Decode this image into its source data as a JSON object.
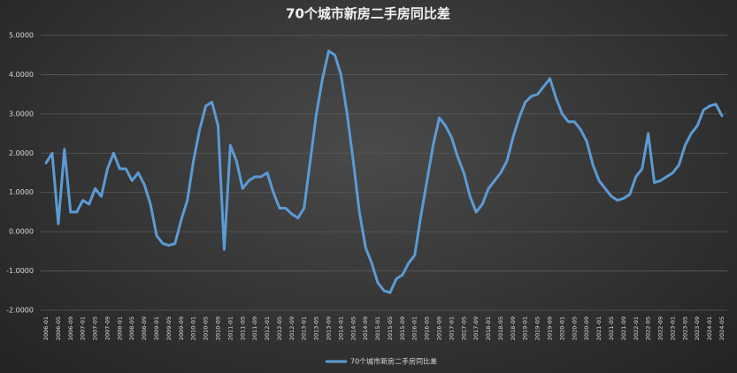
{
  "chart_data": {
    "type": "line",
    "title": "70个城市新房二手房同比差",
    "categories": [
      "2006-01",
      null,
      "2006-05",
      null,
      "2006-09",
      null,
      "2007-01",
      null,
      "2007-05",
      null,
      "2007-09",
      null,
      "2008-01",
      null,
      "2008-05",
      null,
      "2008-09",
      null,
      "2009-01",
      null,
      "2009-05",
      null,
      "2009-09",
      null,
      "2010-01",
      null,
      "2010-05",
      null,
      "2010-09",
      null,
      "2011-01",
      null,
      "2011-05",
      null,
      "2011-09",
      null,
      "2012-01",
      null,
      "2012-05",
      null,
      "2012-09",
      null,
      "2013-01",
      null,
      "2013-05",
      null,
      "2013-09",
      null,
      "2014-01",
      null,
      "2014-05",
      null,
      "2014-09",
      null,
      "2015-01",
      null,
      "2015-05",
      null,
      "2015-09",
      null,
      "2016-01",
      null,
      "2016-05",
      null,
      "2016-09",
      null,
      "2017-01",
      null,
      "2017-05",
      null,
      "2017-09",
      null,
      "2018-01",
      null,
      "2018-05",
      null,
      "2018-09",
      null,
      "2019-01",
      null,
      "2019-05",
      null,
      "2019-09",
      null,
      "2020-01",
      null,
      "2020-05",
      null,
      "2020-09",
      null,
      "2021-01",
      null,
      "2021-05",
      null,
      "2021-09",
      null,
      "2022-01",
      null,
      "2022-05",
      null,
      "2022-09",
      null,
      "2023-01",
      null,
      "2023-05",
      null,
      "2023-09",
      null,
      "2024-01",
      null,
      "2024-05"
    ],
    "series": [
      {
        "name": "70个城市新房二手房同比差",
        "color": "#5b9bd5",
        "values": [
          1.75,
          2.0,
          0.2,
          2.1,
          0.5,
          0.5,
          0.8,
          0.7,
          1.1,
          0.9,
          1.6,
          2.0,
          1.6,
          1.6,
          1.3,
          1.5,
          1.2,
          0.7,
          -0.1,
          -0.3,
          -0.35,
          -0.3,
          0.3,
          0.8,
          1.8,
          2.6,
          3.2,
          3.3,
          2.7,
          -0.45,
          2.2,
          1.8,
          1.1,
          1.3,
          1.4,
          1.4,
          1.5,
          1.0,
          0.6,
          0.6,
          0.45,
          0.35,
          0.6,
          1.8,
          3.0,
          3.9,
          4.6,
          4.5,
          4.0,
          3.0,
          1.8,
          0.5,
          -0.4,
          -0.8,
          -1.3,
          -1.5,
          -1.55,
          -1.2,
          -1.1,
          -0.8,
          -0.6,
          0.4,
          1.3,
          2.2,
          2.9,
          2.7,
          2.4,
          1.9,
          1.5,
          0.9,
          0.5,
          0.7,
          1.1,
          1.3,
          1.5,
          1.8,
          2.4,
          2.9,
          3.3,
          3.45,
          3.5,
          3.7,
          3.9,
          3.4,
          3.0,
          2.8,
          2.8,
          2.6,
          2.3,
          1.7,
          1.3,
          1.1,
          0.9,
          0.8,
          0.85,
          0.95,
          1.4,
          1.6,
          2.5,
          1.25,
          1.3,
          1.4,
          1.5,
          1.7,
          2.2,
          2.5,
          2.7,
          3.1,
          3.2,
          3.25,
          2.95
        ]
      }
    ],
    "ylim": [
      -2,
      5
    ],
    "yticks": [
      {
        "value": -2,
        "label": "-2.0000"
      },
      {
        "value": -1,
        "label": "-1.0000"
      },
      {
        "value": 0,
        "label": "0.0000"
      },
      {
        "value": 1,
        "label": "1.0000"
      },
      {
        "value": 2,
        "label": "2.0000"
      },
      {
        "value": 3,
        "label": "3.0000"
      },
      {
        "value": 4,
        "label": "4.0000"
      },
      {
        "value": 5,
        "label": "5.0000"
      }
    ],
    "grid": true,
    "legend": "bottom"
  }
}
